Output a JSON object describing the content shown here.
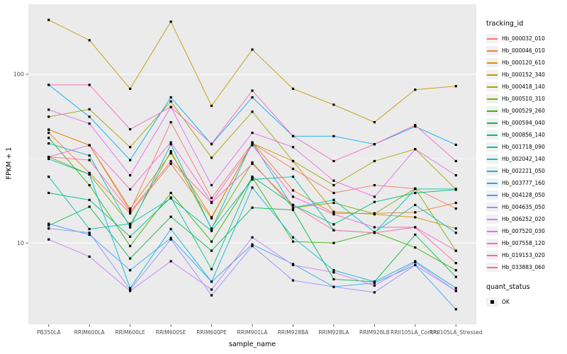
{
  "chart_data": {
    "type": "line",
    "xlabel": "sample_name",
    "ylabel": "FPKM + 1",
    "x_categories": [
      "PB350LA",
      "RRIM600LA",
      "RRIM600LE",
      "RRIM600SE",
      "RRIM600PE",
      "RRIM901LA",
      "RRIM928BA",
      "RRIM928LA",
      "RRIM928LB",
      "RRII105LA_Control",
      "RRII105LA_Stressed"
    ],
    "y_scale": "log10",
    "y_ticks": [
      {
        "value": 100,
        "label": "100"
      },
      {
        "value": 10,
        "label": "10"
      }
    ],
    "y_minor_breaks": [
      31.6
    ],
    "y_range": [
      3.3,
      260
    ],
    "grid": true,
    "panel_bg": "#EBEBEB",
    "grid_color": "#FFFFFF",
    "tick_color": "#333333",
    "tick_label_color": "#4D4D4D",
    "point_marker": "black-square",
    "legend": {
      "position": "right",
      "tracking_title": "tracking_id",
      "quant_title": "quant_status",
      "quant_value": "OK"
    },
    "series": [
      {
        "name": "Hb_000032_010",
        "color": "#F8766D",
        "values": [
          47,
          38,
          15.5,
          52,
          18.5,
          39,
          27.5,
          19.8,
          22,
          21,
          16
        ]
      },
      {
        "name": "Hb_000046_010",
        "color": "#EA8331",
        "values": [
          45,
          26,
          15,
          29.5,
          14,
          39.5,
          20.5,
          15,
          15,
          15.2,
          17.3
        ]
      },
      {
        "name": "Hb_000120_610",
        "color": "#D89000",
        "values": [
          47,
          38,
          16,
          34,
          14.2,
          39,
          30.6,
          15.3,
          14.8,
          14.2,
          12.2
        ]
      },
      {
        "name": "Hb_000152_340",
        "color": "#C09B00",
        "values": [
          210,
          159,
          82,
          205,
          65,
          140,
          82,
          66,
          52,
          81,
          85
        ]
      },
      {
        "name": "Hb_000418_140",
        "color": "#A3A500",
        "values": [
          56,
          62,
          37,
          69,
          32,
          60,
          30.6,
          22,
          30.6,
          36,
          20.8
        ]
      },
      {
        "name": "Hb_000510_310",
        "color": "#7CAE00",
        "values": [
          32.4,
          25.5,
          12.8,
          35,
          12.2,
          30,
          16.2,
          17.3,
          14.9,
          21,
          9
        ]
      },
      {
        "name": "Hb_000529_260",
        "color": "#39B600",
        "values": [
          42,
          22,
          9.6,
          19.8,
          10.2,
          24.5,
          10.2,
          10,
          11.6,
          9.4,
          6.9
        ]
      },
      {
        "name": "Hb_000594_040",
        "color": "#00BB4E",
        "values": [
          12.7,
          16.4,
          8.1,
          14.3,
          9,
          16.2,
          15.7,
          6.1,
          5.9,
          11.2,
          6.3
        ]
      },
      {
        "name": "Hb_000856_140",
        "color": "#00BF7D",
        "values": [
          19.8,
          18,
          10.9,
          18.6,
          7,
          24.7,
          16.8,
          12.9,
          17.5,
          19.8,
          20.7
        ]
      },
      {
        "name": "Hb_001718_090",
        "color": "#00C1A3",
        "values": [
          24.7,
          12.1,
          13,
          18.4,
          11.8,
          23.8,
          24.7,
          11.9,
          11.5,
          20.9,
          20.9
        ]
      },
      {
        "name": "Hb_002042_140",
        "color": "#00BFC4",
        "values": [
          38.9,
          33,
          12.4,
          38.5,
          12.1,
          39.5,
          16.2,
          18,
          11.6,
          16.8,
          11.5
        ]
      },
      {
        "name": "Hb_002221_050",
        "color": "#00BAE0",
        "values": [
          31.5,
          25.5,
          5.4,
          12.1,
          5.9,
          21.3,
          10.8,
          6.9,
          5.9,
          7.8,
          5.4
        ]
      },
      {
        "name": "Hb_003777_160",
        "color": "#00B0F6",
        "values": [
          86.5,
          56,
          31,
          73,
          38.5,
          73,
          43,
          43,
          38.5,
          49,
          38.2
        ]
      },
      {
        "name": "Hb_004128_050",
        "color": "#35A2FF",
        "values": [
          13,
          11.2,
          6.9,
          10.7,
          5.9,
          9.8,
          7.5,
          5.5,
          5.8,
          7.4,
          4.05
        ]
      },
      {
        "name": "Hb_004635_050",
        "color": "#9590FF",
        "values": [
          12.2,
          11.5,
          5.3,
          10.5,
          4.9,
          9.6,
          6,
          5.5,
          5.1,
          7.4,
          5.2
        ]
      },
      {
        "name": "Hb_006252_020",
        "color": "#C77CFF",
        "values": [
          10.5,
          8.3,
          5.2,
          7.8,
          5.3,
          10.8,
          7.4,
          6.7,
          5.6,
          7.7,
          5.2
        ]
      },
      {
        "name": "Hb_007520_030",
        "color": "#E76BF3",
        "values": [
          61.7,
          51,
          25.2,
          64,
          22,
          45,
          37,
          23.4,
          18.8,
          36,
          25.2
        ]
      },
      {
        "name": "Hb_007558_120",
        "color": "#FA62DB",
        "values": [
          32.4,
          38,
          20.8,
          39.5,
          17.5,
          38,
          18.8,
          14.8,
          12.4,
          12.4,
          9
        ]
      },
      {
        "name": "Hb_019153_020",
        "color": "#FF62BC",
        "values": [
          86.5,
          86.5,
          47.2,
          64,
          38.7,
          80,
          43,
          30.6,
          38.5,
          50,
          30.6
        ]
      },
      {
        "name": "Hb_033883_060",
        "color": "#FF6A98",
        "values": [
          32.4,
          31,
          15.3,
          30.5,
          17.3,
          29.5,
          16.8,
          11.9,
          11.5,
          12.4,
          7.6
        ]
      }
    ]
  }
}
